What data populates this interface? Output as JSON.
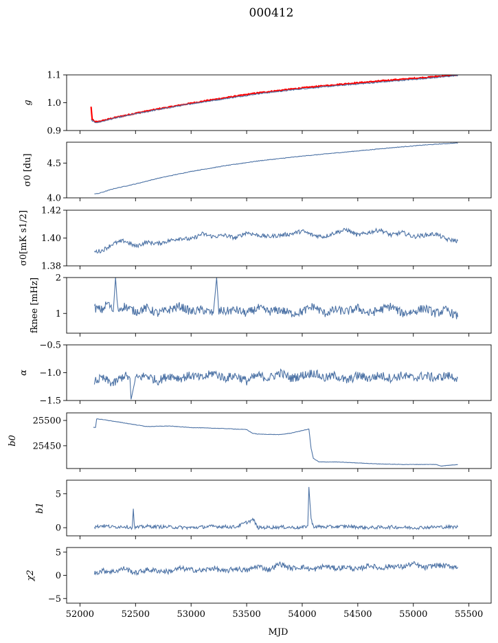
{
  "figure": {
    "title": "000412",
    "xlabel": "MJD"
  },
  "chart_data": [
    {
      "type": "line",
      "ylabel": "g",
      "xlim": [
        51880,
        55700
      ],
      "ylim": [
        0.9,
        1.1
      ],
      "yticks": [
        0.9,
        1.0,
        1.1
      ],
      "ytick_labels": [
        "0.9",
        "1.0",
        "1.1"
      ],
      "series": [
        {
          "color": "#ff0000",
          "x": [
            52100,
            52110,
            52130,
            52160,
            52200,
            52300,
            52500,
            52700,
            53000,
            53300,
            53600,
            54000,
            54400,
            54800,
            55100,
            55300,
            55400
          ],
          "y": [
            0.985,
            0.94,
            0.932,
            0.931,
            0.935,
            0.945,
            0.962,
            0.977,
            0.998,
            1.017,
            1.035,
            1.053,
            1.068,
            1.081,
            1.09,
            1.097,
            1.1
          ]
        },
        {
          "color": "#4c72a5",
          "x": [
            52100,
            52130,
            52160,
            52200,
            52300,
            52500,
            52700,
            53000,
            53300,
            53600,
            54000,
            54400,
            54800,
            55100,
            55300,
            55400
          ],
          "y": [
            0.938,
            0.93,
            0.929,
            0.933,
            0.943,
            0.96,
            0.975,
            0.996,
            1.014,
            1.032,
            1.05,
            1.064,
            1.077,
            1.087,
            1.094,
            1.098
          ]
        }
      ]
    },
    {
      "type": "line",
      "ylabel": "σ0 [du]",
      "xlim": [
        51880,
        55700
      ],
      "ylim": [
        4.0,
        4.8
      ],
      "yticks": [
        4.0,
        4.5
      ],
      "ytick_labels": [
        "4.0",
        "4.5"
      ],
      "series": [
        {
          "color": "#4c72a5",
          "x": [
            52130,
            52160,
            52200,
            52300,
            52500,
            52700,
            53000,
            53300,
            53600,
            54000,
            54400,
            54800,
            55100,
            55300,
            55400
          ],
          "y": [
            4.06,
            4.06,
            4.08,
            4.13,
            4.2,
            4.28,
            4.38,
            4.46,
            4.53,
            4.6,
            4.66,
            4.72,
            4.76,
            4.78,
            4.79
          ]
        }
      ]
    },
    {
      "type": "line",
      "ylabel": "σ0[mK s1/2]",
      "xlim": [
        51880,
        55700
      ],
      "ylim": [
        1.38,
        1.42
      ],
      "yticks": [
        1.38,
        1.4,
        1.42
      ],
      "ytick_labels": [
        "1.38",
        "1.40",
        "1.42"
      ],
      "series": [
        {
          "color": "#4c72a5",
          "x": [
            52130,
            52200,
            52300,
            52400,
            52500,
            52600,
            52700,
            52800,
            52900,
            53000,
            53100,
            53200,
            53300,
            53400,
            53500,
            53600,
            53700,
            53800,
            53900,
            54000,
            54100,
            54200,
            54300,
            54400,
            54500,
            54600,
            54700,
            54800,
            54900,
            55000,
            55100,
            55200,
            55300,
            55400
          ],
          "y": [
            1.39,
            1.391,
            1.396,
            1.398,
            1.394,
            1.397,
            1.396,
            1.398,
            1.4,
            1.399,
            1.403,
            1.401,
            1.402,
            1.4,
            1.404,
            1.402,
            1.401,
            1.402,
            1.403,
            1.405,
            1.402,
            1.401,
            1.404,
            1.406,
            1.402,
            1.404,
            1.406,
            1.402,
            1.404,
            1.401,
            1.402,
            1.403,
            1.399,
            1.398
          ]
        }
      ]
    },
    {
      "type": "line",
      "ylabel": "fknee [mHz]",
      "xlim": [
        51880,
        55700
      ],
      "ylim": [
        0.45,
        2.0
      ],
      "yticks": [
        1,
        2
      ],
      "ytick_labels": [
        "1",
        "2"
      ],
      "series": [
        {
          "color": "#4c72a5",
          "x": [
            52130,
            52200,
            52250,
            52300,
            52320,
            52340,
            52400,
            52500,
            52600,
            52700,
            52800,
            52900,
            53000,
            53100,
            53200,
            53230,
            53250,
            53270,
            53300,
            53400,
            53500,
            53600,
            53700,
            53800,
            53900,
            54000,
            54100,
            54200,
            54300,
            54400,
            54500,
            54600,
            54700,
            54800,
            54900,
            55000,
            55100,
            55200,
            55300,
            55400
          ],
          "y": [
            1.15,
            1.1,
            1.3,
            1.05,
            2.0,
            1.1,
            1.2,
            1.05,
            1.15,
            1.0,
            1.1,
            1.2,
            1.05,
            1.1,
            1.0,
            2.0,
            1.0,
            1.1,
            1.05,
            1.1,
            1.0,
            1.15,
            1.05,
            1.1,
            1.0,
            1.05,
            1.2,
            1.0,
            1.1,
            1.05,
            1.15,
            1.0,
            1.1,
            1.2,
            1.0,
            1.05,
            1.15,
            1.0,
            1.1,
            0.9
          ]
        }
      ]
    },
    {
      "type": "line",
      "ylabel": "α",
      "xlim": [
        51880,
        55700
      ],
      "ylim": [
        -1.5,
        -0.5
      ],
      "yticks": [
        -1.5,
        -1.0,
        -0.5
      ],
      "ytick_labels": [
        "−1.5",
        "−1.0",
        "−0.5"
      ],
      "series": [
        {
          "color": "#4c72a5",
          "x": [
            52130,
            52200,
            52300,
            52400,
            52450,
            52460,
            52500,
            52600,
            52700,
            52800,
            52900,
            53000,
            53100,
            53200,
            53300,
            53400,
            53500,
            53600,
            53700,
            53800,
            53900,
            54000,
            54100,
            54200,
            54300,
            54400,
            54500,
            54600,
            54700,
            54800,
            54900,
            55000,
            55100,
            55200,
            55300,
            55400
          ],
          "y": [
            -1.15,
            -1.1,
            -1.2,
            -1.05,
            -1.1,
            -1.48,
            -1.1,
            -1.05,
            -1.15,
            -1.05,
            -1.1,
            -1.05,
            -1.1,
            -1.0,
            -1.1,
            -1.05,
            -1.15,
            -1.05,
            -1.1,
            -1.0,
            -1.1,
            -1.05,
            -1.0,
            -1.1,
            -1.05,
            -1.15,
            -1.05,
            -1.1,
            -1.05,
            -1.1,
            -1.05,
            -1.1,
            -1.05,
            -1.1,
            -1.05,
            -1.1
          ]
        }
      ]
    },
    {
      "type": "line",
      "ylabel": "b0",
      "xlim": [
        51880,
        55700
      ],
      "ylim": [
        25405,
        25515
      ],
      "yticks": [
        25450,
        25500
      ],
      "ytick_labels": [
        "25450",
        "25500"
      ],
      "series": [
        {
          "color": "#4c72a5",
          "x": [
            52120,
            52140,
            52150,
            52200,
            52400,
            52600,
            52800,
            53000,
            53300,
            53500,
            53550,
            53600,
            53800,
            53900,
            54000,
            54060,
            54080,
            54100,
            54150,
            54300,
            54500,
            54700,
            54900,
            55100,
            55200,
            55250,
            55300,
            55400
          ],
          "y": [
            25486,
            25486,
            25503,
            25502,
            25495,
            25488,
            25489,
            25486,
            25484,
            25482,
            25475,
            25473,
            25472,
            25475,
            25480,
            25483,
            25445,
            25425,
            25418,
            25418,
            25416,
            25414,
            25413,
            25413,
            25413,
            25410,
            25411,
            25413
          ]
        }
      ]
    },
    {
      "type": "line",
      "ylabel": "b1",
      "xlim": [
        51880,
        55700
      ],
      "ylim": [
        -1.2,
        7.0
      ],
      "yticks": [
        0,
        5
      ],
      "ytick_labels": [
        "0",
        "5"
      ],
      "series": [
        {
          "color": "#4c72a5",
          "x": [
            52130,
            52200,
            52300,
            52400,
            52470,
            52480,
            52490,
            52600,
            52800,
            53000,
            53200,
            53400,
            53560,
            53600,
            53800,
            54000,
            54050,
            54060,
            54070,
            54080,
            54090,
            54100,
            54200,
            54400,
            54600,
            54800,
            55000,
            55200,
            55400
          ],
          "y": [
            0.1,
            0.3,
            0.1,
            0.2,
            0.0,
            2.8,
            0.0,
            0.2,
            0.1,
            0.0,
            0.2,
            0.1,
            1.2,
            0.0,
            0.1,
            0.0,
            0.3,
            6.0,
            3.5,
            1.5,
            0.6,
            0.2,
            0.1,
            0.2,
            0.0,
            0.1,
            0.0,
            0.1,
            0.1
          ]
        }
      ]
    },
    {
      "type": "line",
      "ylabel": "χ2",
      "xlim": [
        51880,
        55700
      ],
      "ylim": [
        -6.0,
        6.0
      ],
      "yticks": [
        -5,
        0,
        5
      ],
      "ytick_labels": [
        "−5",
        "0",
        "5"
      ],
      "xticks": [
        52000,
        52500,
        53000,
        53500,
        54000,
        54500,
        55000,
        55500
      ],
      "xtick_labels": [
        "52000",
        "52500",
        "53000",
        "53500",
        "54000",
        "54500",
        "55000",
        "55500"
      ],
      "series": [
        {
          "color": "#4c72a5",
          "x": [
            52130,
            52200,
            52300,
            52400,
            52500,
            52600,
            52700,
            52800,
            52900,
            53000,
            53100,
            53200,
            53300,
            53400,
            53500,
            53600,
            53700,
            53800,
            53900,
            54000,
            54100,
            54200,
            54300,
            54400,
            54500,
            54600,
            54700,
            54800,
            54900,
            55000,
            55100,
            55200,
            55300,
            55400
          ],
          "y": [
            0.5,
            1.0,
            0.8,
            1.5,
            0.5,
            1.2,
            1.0,
            0.8,
            1.5,
            1.2,
            1.0,
            1.6,
            0.8,
            1.5,
            1.0,
            2.0,
            1.2,
            2.5,
            1.5,
            1.8,
            1.2,
            2.0,
            1.5,
            1.8,
            1.2,
            2.2,
            1.5,
            2.0,
            1.8,
            2.5,
            1.6,
            2.2,
            2.0,
            1.8
          ]
        }
      ]
    }
  ]
}
